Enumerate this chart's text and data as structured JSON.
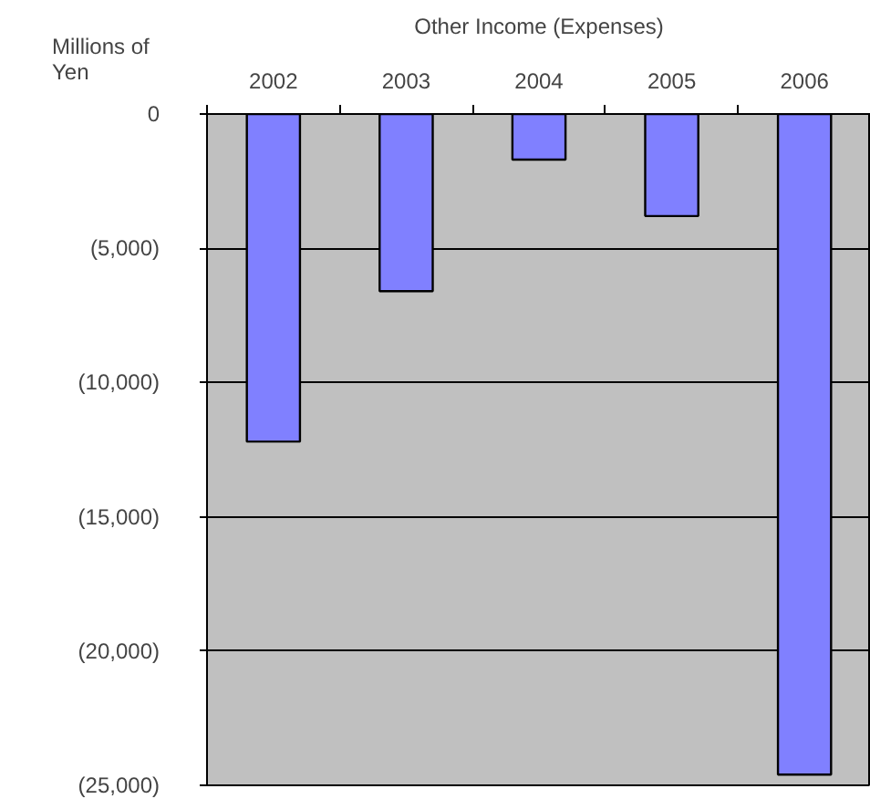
{
  "chart_data": {
    "type": "bar",
    "title": "Other Income (Expenses)",
    "ylabel": "Millions of Yen",
    "categories": [
      "2002",
      "2003",
      "2004",
      "2005",
      "2006"
    ],
    "values": [
      -12200,
      -6600,
      -1700,
      -3800,
      -24600
    ],
    "color": "#8080ff",
    "ylim": [
      -25000,
      0
    ],
    "yticks": [
      0,
      {
        "value": -5000,
        "label": "(5,000)"
      },
      {
        "value": -10000,
        "label": "(10,000)"
      },
      {
        "value": -15000,
        "label": "(15,000)"
      },
      {
        "value": -20000,
        "label": "(20,000)"
      },
      {
        "value": -25000,
        "label": "(25,000)"
      }
    ],
    "grid": "y"
  }
}
